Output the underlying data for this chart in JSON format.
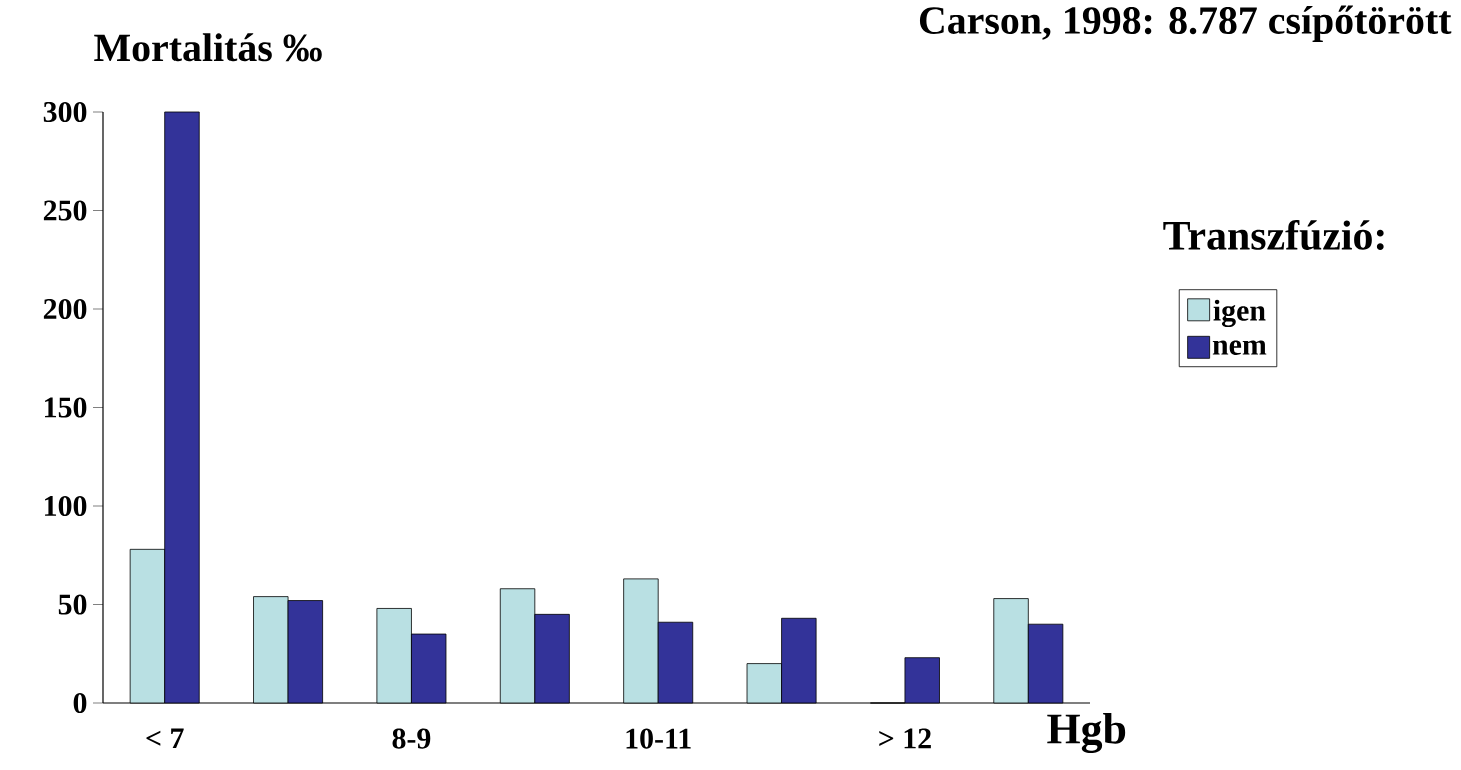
{
  "chart_data": {
    "type": "bar",
    "title": "Carson, 1998: 8.787 csípőtörött",
    "ylabel": "Mortalitás ‰",
    "xlabel": "Hgb",
    "legend_title": "Transzfúzió:",
    "categories": [
      "< 7",
      null,
      "8-9",
      null,
      "10-11",
      null,
      "> 12",
      null
    ],
    "series": [
      {
        "name": "igen",
        "color": "#b9e0e3",
        "values": [
          78,
          54,
          48,
          58,
          63,
          20,
          0,
          53
        ]
      },
      {
        "name": "nem",
        "color": "#333399",
        "values": [
          300,
          52,
          35,
          45,
          41,
          43,
          23,
          40
        ]
      }
    ],
    "ylim": [
      0,
      300
    ],
    "yticks": [
      0,
      50,
      100,
      150,
      200,
      250,
      300
    ],
    "grid": false,
    "legend": "right"
  }
}
